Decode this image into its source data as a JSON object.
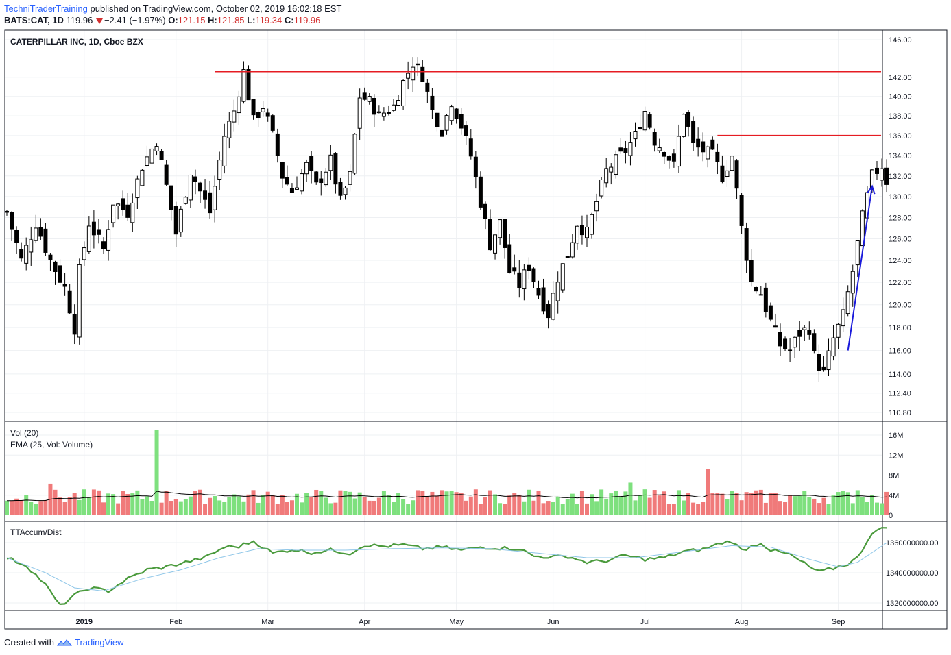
{
  "header": {
    "publisher": "TechniTraderTraining",
    "published_text": "published on TradingView.com, October 02, 2019 16:02:18 EST",
    "symbol": "BATS:CAT, 1D",
    "last": "119.96",
    "change": "−2.41 (−1.97%)",
    "o_label": "O:",
    "o_value": "121.15",
    "h_label": "H:",
    "h_value": "121.85",
    "l_label": "L:",
    "l_value": "119.34",
    "c_label": "C:",
    "c_value": "119.96"
  },
  "panes": {
    "price_title": "CATERPILLAR INC, 1D, Cboe BZX",
    "vol_title": "Vol (20)",
    "vol_ema_title": "EMA (25, Vol: Volume)",
    "osc_title": "TTAccum/Dist"
  },
  "footer": {
    "created_with": "Created with",
    "brand": "TradingView"
  },
  "colors": {
    "up_volume": "#7ee07e",
    "down_volume": "#f07a7a",
    "resistance": "#e51c23",
    "trend_arrow": "#1a1adb",
    "accum_line": "#4a9a3c",
    "accum_ma": "#8ec6e8",
    "candle": "#000000"
  },
  "chart_data": [
    {
      "type": "candlestick",
      "title": "CATERPILLAR INC, 1D, Cboe BZX",
      "y_scale": "log",
      "y_ticks": [
        146.0,
        142.0,
        140.0,
        138.0,
        136.0,
        134.0,
        132.0,
        130.0,
        128.0,
        126.0,
        124.0,
        122.0,
        120.0,
        118.0,
        116.0,
        114.0,
        112.4,
        110.8
      ],
      "y_tick_labels": [
        "146.00",
        "142.00",
        "140.00",
        "138.00",
        "136.00",
        "134.00",
        "132.00",
        "130.00",
        "128.00",
        "126.00",
        "124.00",
        "122.00",
        "120.00",
        "118.00",
        "116.00",
        "114.00",
        "112.40",
        "110.80"
      ],
      "x_tick_labels": [
        "2019",
        "Feb",
        "Mar",
        "Apr",
        "May",
        "Jun",
        "Jul",
        "Aug",
        "Sep"
      ],
      "x_tick_bar_index": [
        16,
        35,
        54,
        74,
        93,
        113,
        132,
        152,
        172
      ],
      "bar_count": 183,
      "ohlc_anchor_closes": [
        [
          0,
          128.5
        ],
        [
          3,
          124
        ],
        [
          6,
          127.5
        ],
        [
          9,
          124
        ],
        [
          12,
          121.5
        ],
        [
          14,
          118
        ],
        [
          15,
          123
        ],
        [
          17,
          127.5
        ],
        [
          20,
          125
        ],
        [
          22,
          129.5
        ],
        [
          25,
          128.5
        ],
        [
          28,
          133
        ],
        [
          31,
          135.5
        ],
        [
          33,
          131
        ],
        [
          35,
          126.5
        ],
        [
          38,
          132.5
        ],
        [
          40,
          130.5
        ],
        [
          42,
          128.5
        ],
        [
          45,
          136
        ],
        [
          47,
          138.5
        ],
        [
          49,
          142.6
        ],
        [
          51,
          137.5
        ],
        [
          53,
          139
        ],
        [
          55,
          136
        ],
        [
          57,
          132
        ],
        [
          59,
          130.5
        ],
        [
          62,
          133
        ],
        [
          64,
          131
        ],
        [
          67,
          133.5
        ],
        [
          69,
          129.5
        ],
        [
          71,
          132
        ],
        [
          73,
          140
        ],
        [
          75,
          139.5
        ],
        [
          77,
          138
        ],
        [
          80,
          139
        ],
        [
          82,
          141.5
        ],
        [
          84,
          143.5
        ],
        [
          86,
          142.2
        ],
        [
          88,
          138.5
        ],
        [
          90,
          136.5
        ],
        [
          92,
          139.5
        ],
        [
          94,
          137
        ],
        [
          96,
          134
        ],
        [
          98,
          129.5
        ],
        [
          100,
          125.5
        ],
        [
          102,
          127.5
        ],
        [
          104,
          123
        ],
        [
          106,
          121.8
        ],
        [
          108,
          123.5
        ],
        [
          110,
          121
        ],
        [
          112,
          119.2
        ],
        [
          114,
          122.5
        ],
        [
          116,
          124.5
        ],
        [
          118,
          127.5
        ],
        [
          120,
          126.5
        ],
        [
          122,
          129.5
        ],
        [
          124,
          132.5
        ],
        [
          126,
          133.5
        ],
        [
          128,
          134.5
        ],
        [
          130,
          136
        ],
        [
          132,
          138.5
        ],
        [
          134,
          135.5
        ],
        [
          136,
          134.5
        ],
        [
          138,
          133
        ],
        [
          140,
          138.5
        ],
        [
          142,
          135
        ],
        [
          144,
          134.5
        ],
        [
          146,
          134
        ],
        [
          148,
          132
        ],
        [
          150,
          134
        ],
        [
          152,
          127
        ],
        [
          154,
          122
        ],
        [
          156,
          121
        ],
        [
          158,
          118.5
        ],
        [
          160,
          116.5
        ],
        [
          162,
          116
        ],
        [
          164,
          117.5
        ],
        [
          166,
          118
        ],
        [
          167,
          115.5
        ],
        [
          169,
          114
        ],
        [
          171,
          117
        ],
        [
          173,
          119
        ],
        [
          175,
          123
        ],
        [
          177,
          128
        ],
        [
          179,
          132
        ],
        [
          181,
          133
        ],
        [
          182,
          131.5
        ],
        [
          183,
          131.2
        ]
      ],
      "annotations": {
        "resistance_lines": [
          {
            "price": 142.6,
            "from_bar": 43,
            "to_bar": 183
          },
          {
            "price": 136.0,
            "from_bar": 147,
            "to_bar": 183
          }
        ],
        "trend_arrow": {
          "from_bar": 174,
          "from_price": 116.0,
          "to_bar": 179,
          "to_price": 131.0
        }
      }
    },
    {
      "type": "bar",
      "title": "Vol (20)",
      "y_ticks": [
        0,
        4000000,
        8000000,
        12000000,
        16000000
      ],
      "y_tick_labels": [
        "0",
        "4M",
        "8M",
        "12M",
        "16M"
      ],
      "series": [
        {
          "name": "Vol (20)"
        },
        {
          "name": "EMA (25, Vol: Volume)"
        }
      ],
      "notable_spikes": [
        [
          31,
          17000000
        ],
        [
          9,
          6300000
        ],
        [
          145,
          9200000
        ],
        [
          129,
          6500000
        ],
        [
          85,
          5000000
        ],
        [
          176,
          5000000
        ]
      ],
      "typical_volume": 4000000,
      "ema_range": [
        3500000,
        6500000
      ]
    },
    {
      "type": "line",
      "title": "TTAccum/Dist",
      "y_ticks": [
        1320000000,
        1340000000,
        1360000000
      ],
      "y_tick_labels": [
        "1320000000.00",
        "1340000000.00",
        "1360000000.00"
      ],
      "series": [
        {
          "name": "TTAccum/Dist",
          "anchors": [
            [
              0,
              1350000000
            ],
            [
              4,
              1345000000
            ],
            [
              8,
              1332000000
            ],
            [
              11,
              1318000000
            ],
            [
              14,
              1325000000
            ],
            [
              17,
              1330000000
            ],
            [
              21,
              1328000000
            ],
            [
              25,
              1336000000
            ],
            [
              29,
              1342000000
            ],
            [
              33,
              1344000000
            ],
            [
              37,
              1347000000
            ],
            [
              41,
              1350000000
            ],
            [
              45,
              1357000000
            ],
            [
              48,
              1357500000
            ],
            [
              51,
              1361000000
            ],
            [
              55,
              1353000000
            ],
            [
              59,
              1355500000
            ],
            [
              63,
              1353500000
            ],
            [
              67,
              1355000000
            ],
            [
              71,
              1353000000
            ],
            [
              74,
              1358500000
            ],
            [
              78,
              1357500000
            ],
            [
              82,
              1358500000
            ],
            [
              86,
              1356000000
            ],
            [
              90,
              1357000000
            ],
            [
              94,
              1355000000
            ],
            [
              98,
              1357000000
            ],
            [
              102,
              1356500000
            ],
            [
              106,
              1356000000
            ],
            [
              109,
              1351000000
            ],
            [
              113,
              1350500000
            ],
            [
              116,
              1351000000
            ],
            [
              120,
              1347000000
            ],
            [
              124,
              1348000000
            ],
            [
              128,
              1351500000
            ],
            [
              132,
              1349000000
            ],
            [
              136,
              1350000000
            ],
            [
              140,
              1354000000
            ],
            [
              144,
              1355500000
            ],
            [
              148,
              1360000000
            ],
            [
              150,
              1361000000
            ],
            [
              152,
              1355000000
            ],
            [
              156,
              1360000000
            ],
            [
              158,
              1355000000
            ],
            [
              162,
              1352000000
            ],
            [
              166,
              1344000000
            ],
            [
              168,
              1340500000
            ],
            [
              171,
              1343000000
            ],
            [
              174,
              1346000000
            ],
            [
              176,
              1350000000
            ],
            [
              179,
              1367000000
            ],
            [
              182,
              1370000000
            ],
            [
              183,
              1368000000
            ]
          ]
        },
        {
          "name": "TTAccum/Dist MA",
          "anchors": [
            [
              0,
              1350000000
            ],
            [
              8,
              1340000000
            ],
            [
              14,
              1330000000
            ],
            [
              20,
              1328000000
            ],
            [
              28,
              1336000000
            ],
            [
              36,
              1342000000
            ],
            [
              44,
              1350000000
            ],
            [
              52,
              1356000000
            ],
            [
              60,
              1355000000
            ],
            [
              70,
              1355000000
            ],
            [
              80,
              1356000000
            ],
            [
              90,
              1356500000
            ],
            [
              100,
              1356000000
            ],
            [
              110,
              1353000000
            ],
            [
              120,
              1350000000
            ],
            [
              130,
              1350000000
            ],
            [
              140,
              1354000000
            ],
            [
              150,
              1358000000
            ],
            [
              158,
              1357000000
            ],
            [
              166,
              1349000000
            ],
            [
              172,
              1344000000
            ],
            [
              176,
              1347000000
            ],
            [
              183,
              1362000000
            ]
          ]
        }
      ]
    }
  ]
}
